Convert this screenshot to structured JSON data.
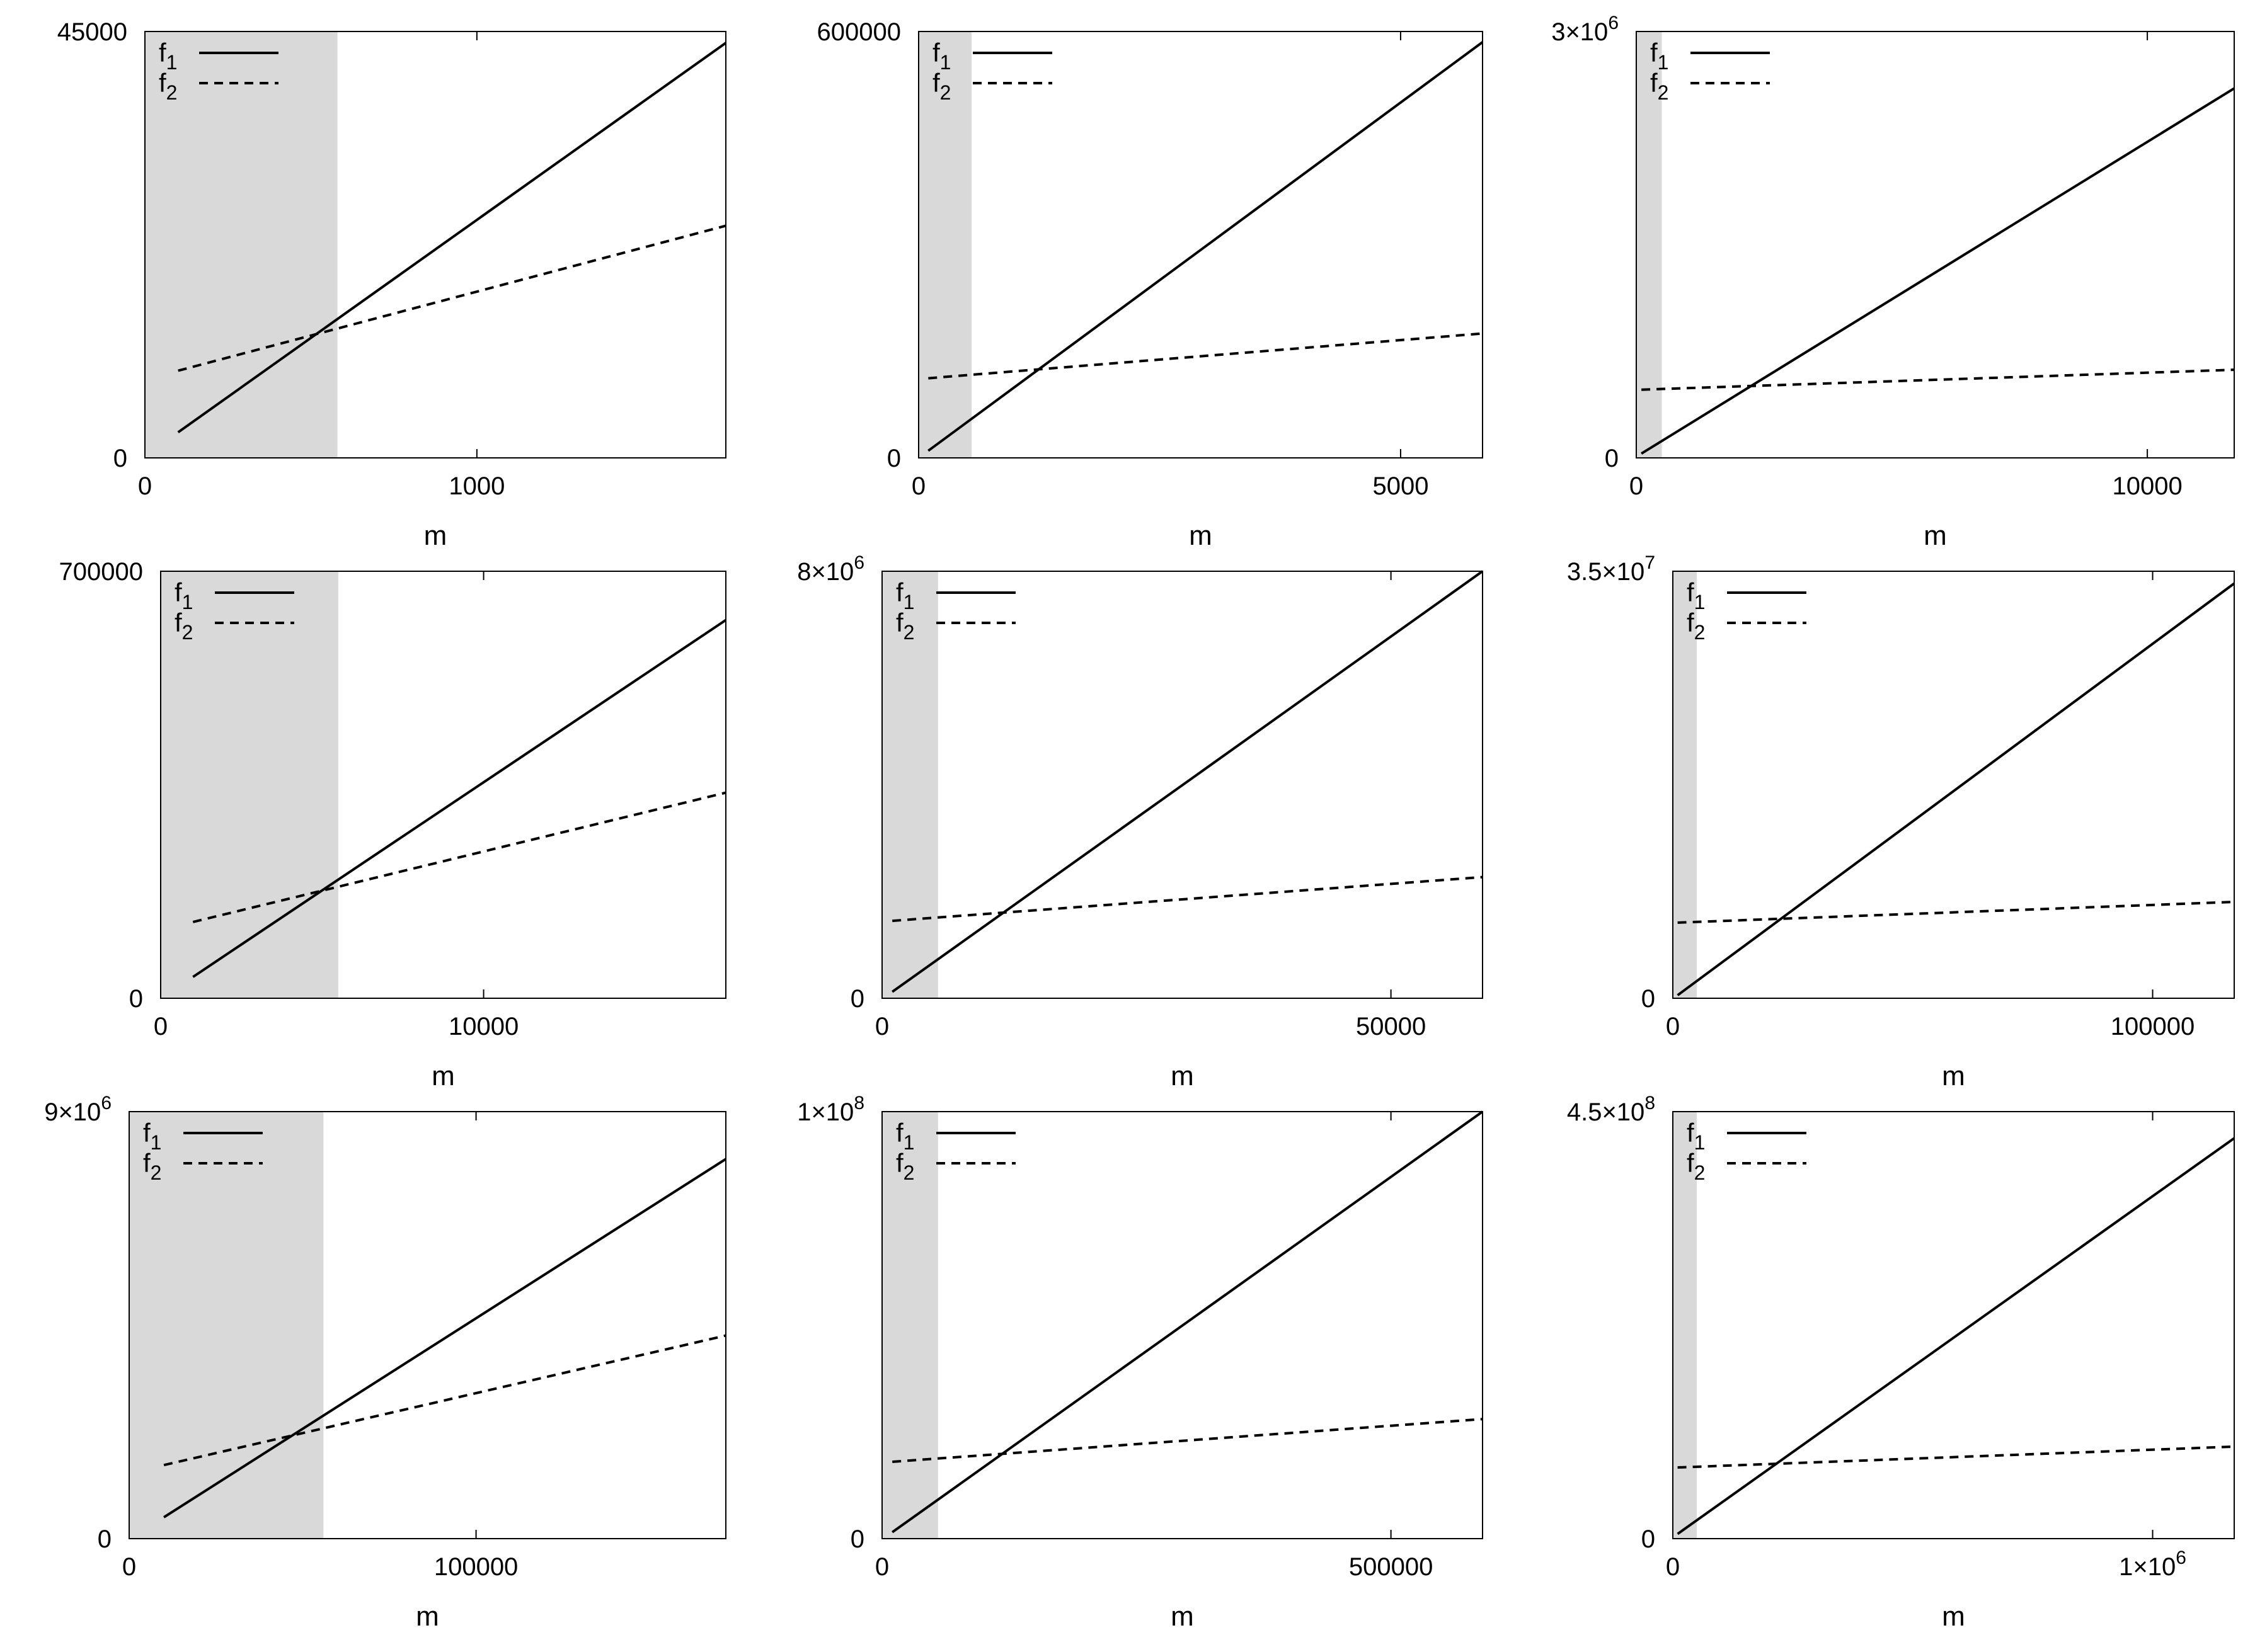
{
  "chart_data": [
    {
      "type": "line",
      "xlabel": "m",
      "xlim": [
        0,
        1750
      ],
      "ylim": [
        0,
        45000
      ],
      "xticks": [
        {
          "v": 0,
          "label": "0"
        },
        {
          "v": 1000,
          "label": "1000"
        }
      ],
      "yticks": [
        {
          "v": 0,
          "label": "0"
        },
        {
          "v": 45000,
          "label": "45000"
        }
      ],
      "shade": [
        0,
        580
      ],
      "series": [
        {
          "name": "f1",
          "style": "solid",
          "x": [
            100,
            1750
          ],
          "y": [
            2700,
            43800
          ]
        },
        {
          "name": "f2",
          "style": "dashed",
          "x": [
            100,
            1750
          ],
          "y": [
            9200,
            24500
          ]
        }
      ]
    },
    {
      "type": "line",
      "xlabel": "m",
      "xlim": [
        0,
        5850
      ],
      "ylim": [
        0,
        600000
      ],
      "xticks": [
        {
          "v": 0,
          "label": "0"
        },
        {
          "v": 5000,
          "label": "5000"
        }
      ],
      "yticks": [
        {
          "v": 0,
          "label": "0"
        },
        {
          "v": 600000,
          "label": "600000"
        }
      ],
      "shade": [
        0,
        550
      ],
      "series": [
        {
          "name": "f1",
          "style": "solid",
          "x": [
            100,
            5850
          ],
          "y": [
            10000,
            585000
          ]
        },
        {
          "name": "f2",
          "style": "dashed",
          "x": [
            100,
            5850
          ],
          "y": [
            112000,
            175000
          ]
        }
      ]
    },
    {
      "type": "line",
      "xlabel": "m",
      "xlim": [
        0,
        11700
      ],
      "ylim": [
        0,
        3000000
      ],
      "xticks": [
        {
          "v": 0,
          "label": "0"
        },
        {
          "v": 10000,
          "label": "10000"
        }
      ],
      "yticks": [
        {
          "v": 0,
          "label": "0"
        },
        {
          "v": 3000000,
          "label": "3×10",
          "sup": "6"
        }
      ],
      "shade": [
        0,
        500
      ],
      "series": [
        {
          "name": "f1",
          "style": "solid",
          "x": [
            100,
            11700
          ],
          "y": [
            30000,
            2600000
          ]
        },
        {
          "name": "f2",
          "style": "dashed",
          "x": [
            100,
            11700
          ],
          "y": [
            480000,
            620000
          ]
        }
      ]
    },
    {
      "type": "line",
      "xlabel": "m",
      "xlim": [
        0,
        17500
      ],
      "ylim": [
        0,
        700000
      ],
      "xticks": [
        {
          "v": 0,
          "label": "0"
        },
        {
          "v": 10000,
          "label": "10000"
        }
      ],
      "yticks": [
        {
          "v": 0,
          "label": "0"
        },
        {
          "v": 700000,
          "label": "700000"
        }
      ],
      "shade": [
        0,
        5500
      ],
      "series": [
        {
          "name": "f1",
          "style": "solid",
          "x": [
            1000,
            17500
          ],
          "y": [
            35000,
            620000
          ]
        },
        {
          "name": "f2",
          "style": "dashed",
          "x": [
            1000,
            17500
          ],
          "y": [
            125000,
            337000
          ]
        }
      ]
    },
    {
      "type": "line",
      "xlabel": "m",
      "xlim": [
        0,
        59000
      ],
      "ylim": [
        0,
        8000000
      ],
      "xticks": [
        {
          "v": 0,
          "label": "0"
        },
        {
          "v": 50000,
          "label": "50000"
        }
      ],
      "yticks": [
        {
          "v": 0,
          "label": "0"
        },
        {
          "v": 8000000,
          "label": "8×10",
          "sup": "6"
        }
      ],
      "shade": [
        0,
        5500
      ],
      "series": [
        {
          "name": "f1",
          "style": "solid",
          "x": [
            1000,
            59000
          ],
          "y": [
            120000,
            8000000
          ]
        },
        {
          "name": "f2",
          "style": "dashed",
          "x": [
            1000,
            59000
          ],
          "y": [
            1450000,
            2270000
          ]
        }
      ]
    },
    {
      "type": "line",
      "xlabel": "m",
      "xlim": [
        0,
        117000
      ],
      "ylim": [
        0,
        35000000
      ],
      "xticks": [
        {
          "v": 0,
          "label": "0"
        },
        {
          "v": 100000,
          "label": "100000"
        }
      ],
      "yticks": [
        {
          "v": 0,
          "label": "0"
        },
        {
          "v": 35000000,
          "label": "3.5×10",
          "sup": "7"
        }
      ],
      "shade": [
        0,
        5000
      ],
      "series": [
        {
          "name": "f1",
          "style": "solid",
          "x": [
            1000,
            117000
          ],
          "y": [
            250000,
            34000000
          ]
        },
        {
          "name": "f2",
          "style": "dashed",
          "x": [
            1000,
            117000
          ],
          "y": [
            6200000,
            7900000
          ]
        }
      ]
    },
    {
      "type": "line",
      "xlabel": "m",
      "xlim": [
        0,
        172000
      ],
      "ylim": [
        0,
        9000000
      ],
      "xticks": [
        {
          "v": 0,
          "label": "0"
        },
        {
          "v": 100000,
          "label": "100000"
        }
      ],
      "yticks": [
        {
          "v": 0,
          "label": "0"
        },
        {
          "v": 9000000,
          "label": "9×10",
          "sup": "6"
        }
      ],
      "shade": [
        0,
        56000
      ],
      "series": [
        {
          "name": "f1",
          "style": "solid",
          "x": [
            10000,
            172000
          ],
          "y": [
            450000,
            8000000
          ]
        },
        {
          "name": "f2",
          "style": "dashed",
          "x": [
            10000,
            172000
          ],
          "y": [
            1550000,
            4280000
          ]
        }
      ]
    },
    {
      "type": "line",
      "xlabel": "m",
      "xlim": [
        0,
        590000
      ],
      "ylim": [
        0,
        100000000
      ],
      "xticks": [
        {
          "v": 0,
          "label": "0"
        },
        {
          "v": 500000,
          "label": "500000"
        }
      ],
      "yticks": [
        {
          "v": 0,
          "label": "0"
        },
        {
          "v": 100000000,
          "label": "1×10",
          "sup": "8"
        }
      ],
      "shade": [
        0,
        55000
      ],
      "series": [
        {
          "name": "f1",
          "style": "solid",
          "x": [
            10000,
            590000
          ],
          "y": [
            1500000,
            100000000
          ]
        },
        {
          "name": "f2",
          "style": "dashed",
          "x": [
            10000,
            590000
          ],
          "y": [
            18000000,
            28000000
          ]
        }
      ]
    },
    {
      "type": "line",
      "xlabel": "m",
      "xlim": [
        0,
        1170000
      ],
      "ylim": [
        0,
        450000000
      ],
      "xticks": [
        {
          "v": 0,
          "label": "0"
        },
        {
          "v": 1000000,
          "label": "1×10",
          "sup": "6"
        }
      ],
      "yticks": [
        {
          "v": 0,
          "label": "0"
        },
        {
          "v": 450000000,
          "label": "4.5×10",
          "sup": "8"
        }
      ],
      "shade": [
        0,
        50000
      ],
      "series": [
        {
          "name": "f1",
          "style": "solid",
          "x": [
            10000,
            1170000
          ],
          "y": [
            5000000,
            422000000
          ]
        },
        {
          "name": "f2",
          "style": "dashed",
          "x": [
            10000,
            1170000
          ],
          "y": [
            75000000,
            97000000
          ]
        }
      ]
    }
  ]
}
